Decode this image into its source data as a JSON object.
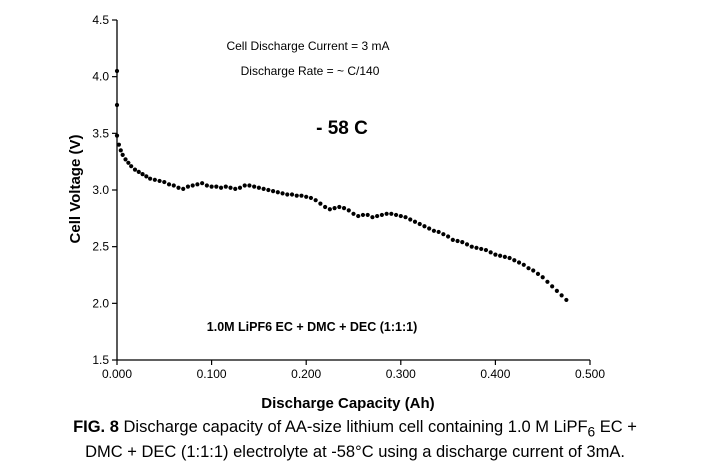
{
  "chart_data": {
    "type": "scatter",
    "xlabel": "Discharge Capacity (Ah)",
    "ylabel": "Cell Voltage (V)",
    "xlim": [
      0.0,
      0.5
    ],
    "ylim": [
      1.5,
      4.5
    ],
    "xticks": [
      "0.000",
      "0.100",
      "0.200",
      "0.300",
      "0.400",
      "0.500"
    ],
    "yticks": [
      "1.5",
      "2.0",
      "2.5",
      "3.0",
      "3.5",
      "4.0",
      "4.5"
    ],
    "grid": false,
    "annotations": {
      "current": "Cell Discharge Current =  3 mA",
      "rate": "Discharge Rate = ~ C/140",
      "temperature": "- 58 C",
      "electrolyte": "1.0M LiPF6  EC + DMC + DEC (1:1:1)"
    },
    "series": [
      {
        "marker_color": "#000000",
        "x": [
          0.0,
          0.0,
          0.0,
          0.002,
          0.004,
          0.006,
          0.009,
          0.012,
          0.015,
          0.019,
          0.023,
          0.027,
          0.031,
          0.035,
          0.04,
          0.045,
          0.05,
          0.055,
          0.06,
          0.065,
          0.07,
          0.075,
          0.08,
          0.085,
          0.09,
          0.095,
          0.1,
          0.105,
          0.11,
          0.115,
          0.12,
          0.125,
          0.13,
          0.135,
          0.14,
          0.145,
          0.15,
          0.155,
          0.16,
          0.165,
          0.17,
          0.175,
          0.18,
          0.185,
          0.19,
          0.195,
          0.2,
          0.205,
          0.21,
          0.215,
          0.22,
          0.225,
          0.23,
          0.235,
          0.24,
          0.245,
          0.25,
          0.255,
          0.26,
          0.265,
          0.27,
          0.275,
          0.28,
          0.285,
          0.29,
          0.295,
          0.3,
          0.305,
          0.31,
          0.315,
          0.32,
          0.325,
          0.33,
          0.335,
          0.34,
          0.345,
          0.35,
          0.355,
          0.36,
          0.365,
          0.37,
          0.375,
          0.38,
          0.385,
          0.39,
          0.395,
          0.4,
          0.405,
          0.41,
          0.415,
          0.42,
          0.425,
          0.43,
          0.435,
          0.44,
          0.445,
          0.45,
          0.455,
          0.46,
          0.465,
          0.47,
          0.475
        ],
        "y": [
          4.05,
          3.75,
          3.48,
          3.4,
          3.35,
          3.31,
          3.27,
          3.24,
          3.21,
          3.18,
          3.16,
          3.14,
          3.12,
          3.1,
          3.09,
          3.08,
          3.07,
          3.05,
          3.04,
          3.02,
          3.01,
          3.03,
          3.04,
          3.05,
          3.06,
          3.04,
          3.03,
          3.03,
          3.02,
          3.03,
          3.02,
          3.01,
          3.02,
          3.04,
          3.04,
          3.03,
          3.02,
          3.01,
          3.0,
          2.99,
          2.98,
          2.97,
          2.96,
          2.96,
          2.95,
          2.95,
          2.94,
          2.93,
          2.91,
          2.88,
          2.85,
          2.83,
          2.84,
          2.85,
          2.84,
          2.82,
          2.79,
          2.77,
          2.78,
          2.78,
          2.76,
          2.77,
          2.78,
          2.79,
          2.79,
          2.78,
          2.77,
          2.76,
          2.74,
          2.72,
          2.7,
          2.68,
          2.66,
          2.64,
          2.63,
          2.61,
          2.59,
          2.56,
          2.55,
          2.54,
          2.52,
          2.5,
          2.49,
          2.48,
          2.47,
          2.45,
          2.43,
          2.42,
          2.41,
          2.4,
          2.38,
          2.36,
          2.34,
          2.31,
          2.29,
          2.26,
          2.23,
          2.19,
          2.15,
          2.11,
          2.07,
          2.03
        ]
      }
    ]
  },
  "caption": {
    "fig_label": "FIG. 8",
    "line1_a": "Discharge capacity of AA-size lithium cell containing  1.0 M LiPF",
    "line1_sub": "6",
    "line1_b": " EC +",
    "line2": "DMC + DEC (1:1:1) electrolyte at  -58°C using  a discharge  current of 3mA."
  }
}
